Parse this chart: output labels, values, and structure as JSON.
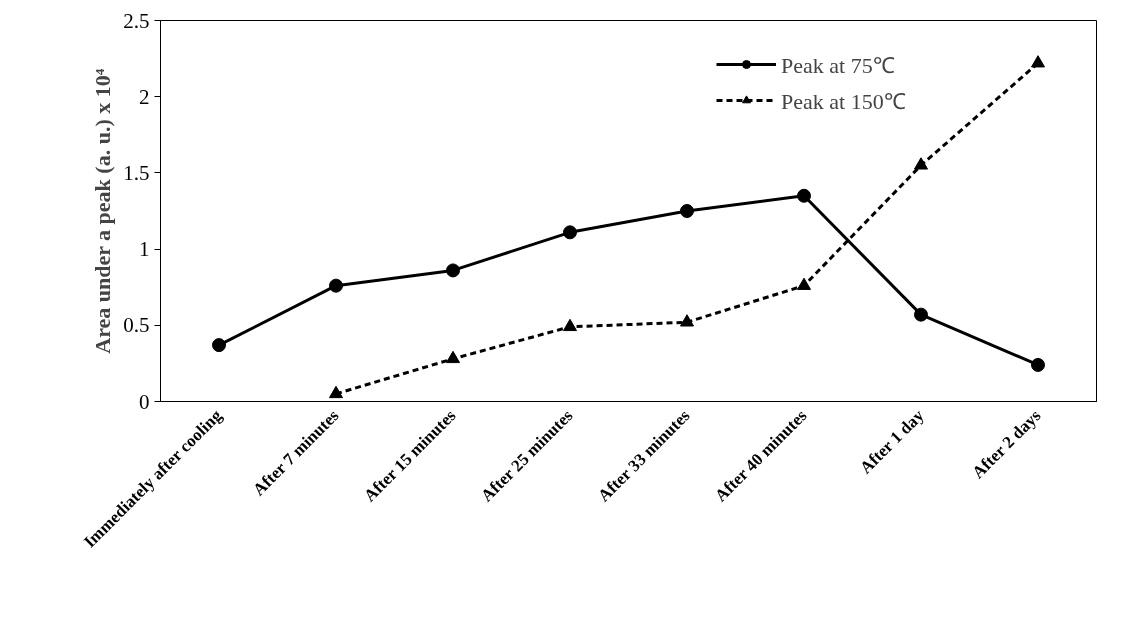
{
  "chart_data": {
    "type": "line",
    "ylabel": "Area under a peak (a. u.) x 10⁴",
    "categories": [
      "Immediately after cooling",
      "After 7 minutes",
      "After 15 minutes",
      "After 25 minutes",
      "After 33 minutes",
      "After 40 minutes",
      "After 1 day",
      "After 2 days"
    ],
    "series": [
      {
        "name": "Peak at 75℃",
        "color": "#000000",
        "marker": "circle",
        "line_style": "solid",
        "values": [
          0.37,
          0.76,
          0.86,
          1.11,
          1.25,
          1.35,
          0.57,
          0.24
        ]
      },
      {
        "name": "Peak at 150℃",
        "color": "#000000",
        "marker": "triangle",
        "line_style": "dashed",
        "values": [
          null,
          0.05,
          0.28,
          0.49,
          0.52,
          0.76,
          1.55,
          2.22
        ]
      }
    ],
    "ylim": [
      0,
      2.5
    ],
    "yticks": [
      0,
      0.5,
      1,
      1.5,
      2,
      2.5
    ],
    "grid": false,
    "legend": "top right"
  }
}
